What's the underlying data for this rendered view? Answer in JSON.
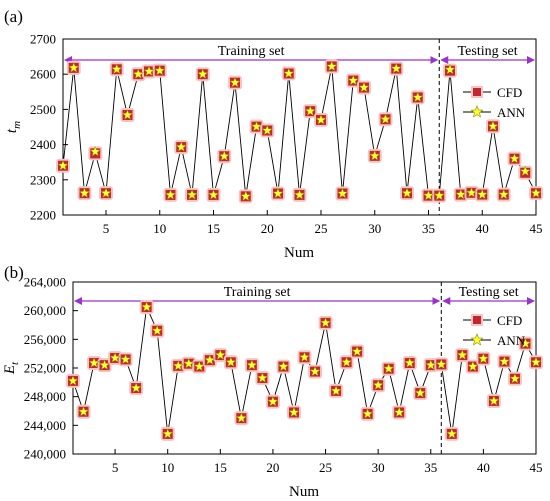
{
  "colors": {
    "region_arrow": "#9933cc",
    "region_text": "#8a2be2",
    "cfd_marker": "#c0282d",
    "cfd_glow": "#f7c3c3",
    "ann_marker": "#ffff33",
    "line": "#000000",
    "divider": "#000000"
  },
  "chart_data": [
    {
      "panel": "(a)",
      "type": "line",
      "ylabel": "t_m",
      "ylabel_main": "t",
      "ylabel_sub": "m",
      "xlabel": "Num",
      "xlim": [
        1,
        45
      ],
      "ylim": [
        2200,
        2700
      ],
      "xticks": [
        5,
        10,
        15,
        20,
        25,
        30,
        35,
        40,
        45
      ],
      "xtick_labels": [
        "5",
        "10",
        "15",
        "20",
        "25",
        "30",
        "35",
        "40",
        "45"
      ],
      "yticks": [
        2200,
        2300,
        2400,
        2500,
        2600,
        2700
      ],
      "ytick_labels": [
        "2200",
        "2300",
        "2400",
        "2500",
        "2600",
        "2700"
      ],
      "training_label": "Training set",
      "testing_label": "Testing set",
      "training_range": [
        1,
        36
      ],
      "testing_range": [
        36,
        45
      ],
      "divider_x": 36,
      "legend": [
        "CFD",
        "ANN"
      ],
      "legend_position": "right",
      "x": [
        1,
        2,
        3,
        4,
        5,
        6,
        7,
        8,
        9,
        10,
        11,
        12,
        13,
        14,
        15,
        16,
        17,
        18,
        19,
        20,
        21,
        22,
        23,
        24,
        25,
        26,
        27,
        28,
        29,
        30,
        31,
        32,
        33,
        34,
        35,
        36,
        37,
        38,
        39,
        40,
        41,
        42,
        43,
        44,
        45
      ],
      "series": [
        {
          "name": "CFD",
          "values": [
            2340,
            2618,
            2262,
            2375,
            2262,
            2614,
            2484,
            2600,
            2608,
            2610,
            2257,
            2393,
            2257,
            2600,
            2257,
            2367,
            2576,
            2253,
            2451,
            2440,
            2261,
            2602,
            2257,
            2495,
            2470,
            2622,
            2261,
            2582,
            2562,
            2368,
            2472,
            2616,
            2262,
            2534,
            2255,
            2255,
            2610,
            2258,
            2263,
            2258,
            2452,
            2258,
            2360,
            2320,
            2262
          ]
        },
        {
          "name": "ANN",
          "values": [
            2340,
            2618,
            2262,
            2380,
            2262,
            2614,
            2484,
            2600,
            2608,
            2610,
            2257,
            2393,
            2257,
            2600,
            2257,
            2367,
            2576,
            2253,
            2451,
            2440,
            2261,
            2602,
            2257,
            2495,
            2470,
            2622,
            2261,
            2582,
            2562,
            2368,
            2472,
            2616,
            2262,
            2534,
            2255,
            2255,
            2613,
            2258,
            2263,
            2258,
            2452,
            2258,
            2360,
            2324,
            2262
          ]
        }
      ]
    },
    {
      "panel": "(b)",
      "type": "line",
      "ylabel": "E_t",
      "ylabel_main": "E",
      "ylabel_sub": "t",
      "xlabel": "Num",
      "xlim": [
        1,
        45
      ],
      "ylim": [
        240000,
        264000
      ],
      "xticks": [
        5,
        10,
        15,
        20,
        25,
        30,
        35,
        40,
        45
      ],
      "xtick_labels": [
        "5",
        "10",
        "15",
        "20",
        "25",
        "30",
        "35",
        "40",
        "45"
      ],
      "yticks": [
        240000,
        244000,
        248000,
        252000,
        256000,
        260000,
        264000
      ],
      "ytick_labels": [
        "240,000",
        "244,000",
        "248,000",
        "252,000",
        "256,000",
        "260,000",
        "264,000"
      ],
      "training_label": "Training set",
      "testing_label": "Testing set",
      "training_range": [
        1,
        36
      ],
      "testing_range": [
        36,
        45
      ],
      "divider_x": 36,
      "legend": [
        "CFD",
        "ANN"
      ],
      "legend_position": "right",
      "x": [
        1,
        2,
        3,
        4,
        5,
        6,
        7,
        8,
        9,
        10,
        11,
        12,
        13,
        14,
        15,
        16,
        17,
        18,
        19,
        20,
        21,
        22,
        23,
        24,
        25,
        26,
        27,
        28,
        29,
        30,
        31,
        32,
        33,
        34,
        35,
        36,
        37,
        38,
        39,
        40,
        41,
        42,
        43,
        44,
        45
      ],
      "series": [
        {
          "name": "CFD",
          "values": [
            250200,
            245900,
            252700,
            252400,
            253400,
            253200,
            249200,
            260500,
            257200,
            242800,
            252300,
            252600,
            252200,
            253100,
            253800,
            252800,
            245000,
            252400,
            250600,
            247300,
            252200,
            245800,
            253500,
            251500,
            258300,
            248800,
            252800,
            254300,
            245600,
            249600,
            251900,
            245800,
            252700,
            248500,
            252400,
            252500,
            242800,
            253800,
            252200,
            253300,
            247400,
            252900,
            250500,
            255400,
            252800
          ]
        },
        {
          "name": "ANN",
          "values": [
            250200,
            245900,
            252700,
            252400,
            253400,
            253200,
            249200,
            260500,
            257200,
            242800,
            252300,
            252600,
            252200,
            253100,
            253800,
            252800,
            245000,
            252400,
            250600,
            247300,
            252200,
            245800,
            253500,
            251500,
            258300,
            248800,
            252800,
            254300,
            245600,
            249600,
            251900,
            245800,
            252700,
            248500,
            252400,
            252500,
            242800,
            253800,
            252200,
            253300,
            247400,
            252900,
            250500,
            255400,
            252800
          ]
        }
      ]
    }
  ]
}
